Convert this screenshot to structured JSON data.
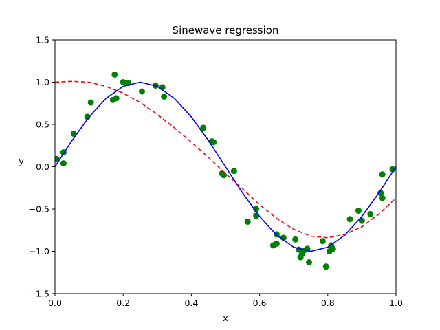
{
  "chart_data": {
    "type": "scatter",
    "title": "Sinewave regression",
    "xlabel": "x",
    "ylabel": "y",
    "xlim": [
      0.0,
      1.0
    ],
    "ylim": [
      -1.5,
      1.5
    ],
    "xticks": [
      "0.0",
      "0.2",
      "0.4",
      "0.6",
      "0.8",
      "1.0"
    ],
    "yticks": [
      "1.5",
      "1.0",
      "0.5",
      "0.0",
      "−0.5",
      "−1.0",
      "−1.5"
    ],
    "grid": false,
    "legend": "none",
    "colors": {
      "points": "#008000",
      "true_curve": "#0000ff",
      "fit_curve": "#ff0000"
    },
    "series": [
      {
        "type": "scatter",
        "x": [
          0.005,
          0.025,
          0.025,
          0.055,
          0.095,
          0.105,
          0.17,
          0.175,
          0.18,
          0.2,
          0.215,
          0.255,
          0.295,
          0.315,
          0.32,
          0.435,
          0.46,
          0.465,
          0.49,
          0.495,
          0.525,
          0.565,
          0.59,
          0.59,
          0.64,
          0.65,
          0.65,
          0.67,
          0.705,
          0.715,
          0.72,
          0.725,
          0.73,
          0.74,
          0.745,
          0.785,
          0.795,
          0.805,
          0.81,
          0.815,
          0.865,
          0.89,
          0.9,
          0.925,
          0.955,
          0.96,
          0.96,
          0.99
        ],
        "values": [
          0.09,
          0.04,
          0.17,
          0.39,
          0.59,
          0.76,
          0.79,
          1.09,
          0.81,
          1.0,
          0.99,
          0.89,
          0.96,
          0.94,
          0.83,
          0.46,
          0.3,
          0.29,
          -0.08,
          -0.1,
          -0.05,
          -0.65,
          -0.58,
          -0.5,
          -0.93,
          -0.8,
          -0.91,
          -0.84,
          -0.86,
          -0.98,
          -1.07,
          -1.03,
          -0.99,
          -0.97,
          -1.13,
          -0.88,
          -1.18,
          -1.0,
          -0.93,
          -0.97,
          -0.62,
          -0.52,
          -0.64,
          -0.56,
          -0.31,
          -0.09,
          -0.37,
          -0.03
        ]
      },
      {
        "type": "line",
        "style": "solid",
        "x": [
          0.0,
          0.05,
          0.1,
          0.15,
          0.2,
          0.25,
          0.3,
          0.35,
          0.4,
          0.45,
          0.5,
          0.55,
          0.6,
          0.65,
          0.7,
          0.75,
          0.8,
          0.85,
          0.9,
          0.95,
          1.0
        ],
        "values": [
          0.0,
          0.309,
          0.588,
          0.809,
          0.951,
          1.0,
          0.951,
          0.809,
          0.588,
          0.309,
          0.0,
          -0.309,
          -0.588,
          -0.809,
          -0.951,
          -1.0,
          -0.951,
          -0.809,
          -0.588,
          -0.309,
          0.0
        ]
      },
      {
        "type": "line",
        "style": "dashed",
        "x": [
          0.0,
          0.05,
          0.1,
          0.15,
          0.2,
          0.25,
          0.3,
          0.35,
          0.4,
          0.45,
          0.5,
          0.55,
          0.6,
          0.65,
          0.7,
          0.75,
          0.8,
          0.85,
          0.9,
          0.95,
          1.0
        ],
        "values": [
          1.0,
          1.01,
          1.0,
          0.95,
          0.87,
          0.76,
          0.62,
          0.46,
          0.29,
          0.11,
          -0.08,
          -0.26,
          -0.45,
          -0.61,
          -0.74,
          -0.82,
          -0.84,
          -0.8,
          -0.71,
          -0.56,
          -0.37
        ]
      }
    ]
  }
}
